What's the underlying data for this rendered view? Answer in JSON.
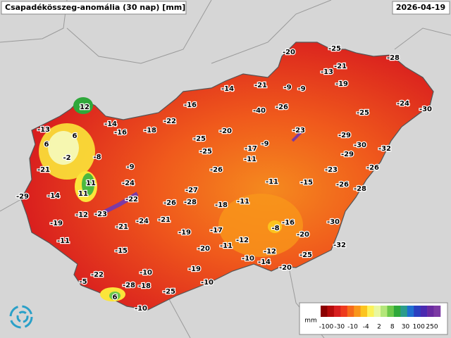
{
  "title": "Csapadékösszeg-anomália (30 nap) [mm]",
  "date": "2026-04-19",
  "station_values": [
    -20,
    -25,
    -28,
    -13,
    -21,
    -19,
    -14,
    -21,
    -9,
    -9,
    -16,
    -40,
    -26,
    -25,
    -24,
    -30,
    12,
    -13,
    -14,
    -16,
    -18,
    -22,
    -20,
    -23,
    -29,
    6,
    6,
    -25,
    -9,
    -17,
    -30,
    -32,
    -2,
    -8,
    -25,
    -11,
    -29,
    -21,
    -9,
    -26,
    -23,
    -26,
    11,
    -24,
    -11,
    -15,
    -26,
    -28,
    -29,
    -14,
    11,
    -27,
    -22,
    -26,
    -28,
    -18,
    -11,
    -12,
    -23,
    -19,
    -21,
    -24,
    -21,
    -17,
    -19,
    -8,
    -16,
    -30,
    -11,
    -20,
    -12,
    -20,
    -11,
    -15,
    -12,
    -32,
    -10,
    -14,
    -25,
    -22,
    -10,
    -19,
    -20,
    -5,
    -28,
    -18,
    -25,
    -10,
    6,
    -10
  ],
  "legend": {
    "unit": "mm",
    "labels": [
      -100,
      -30,
      -10,
      -4,
      2,
      8,
      30,
      100,
      250
    ],
    "colors": [
      "#8b0000",
      "#b40a0a",
      "#d71e1e",
      "#ee3a1c",
      "#f56a1a",
      "#f9961a",
      "#fcc41e",
      "#fbf25a",
      "#e8f7a0",
      "#b4e67a",
      "#6cc84a",
      "#2ea83a",
      "#2a9c8c",
      "#1f6fd0",
      "#2a3fc0",
      "#4a2ab0",
      "#6a2aa0",
      "#7c3aa4"
    ]
  }
}
